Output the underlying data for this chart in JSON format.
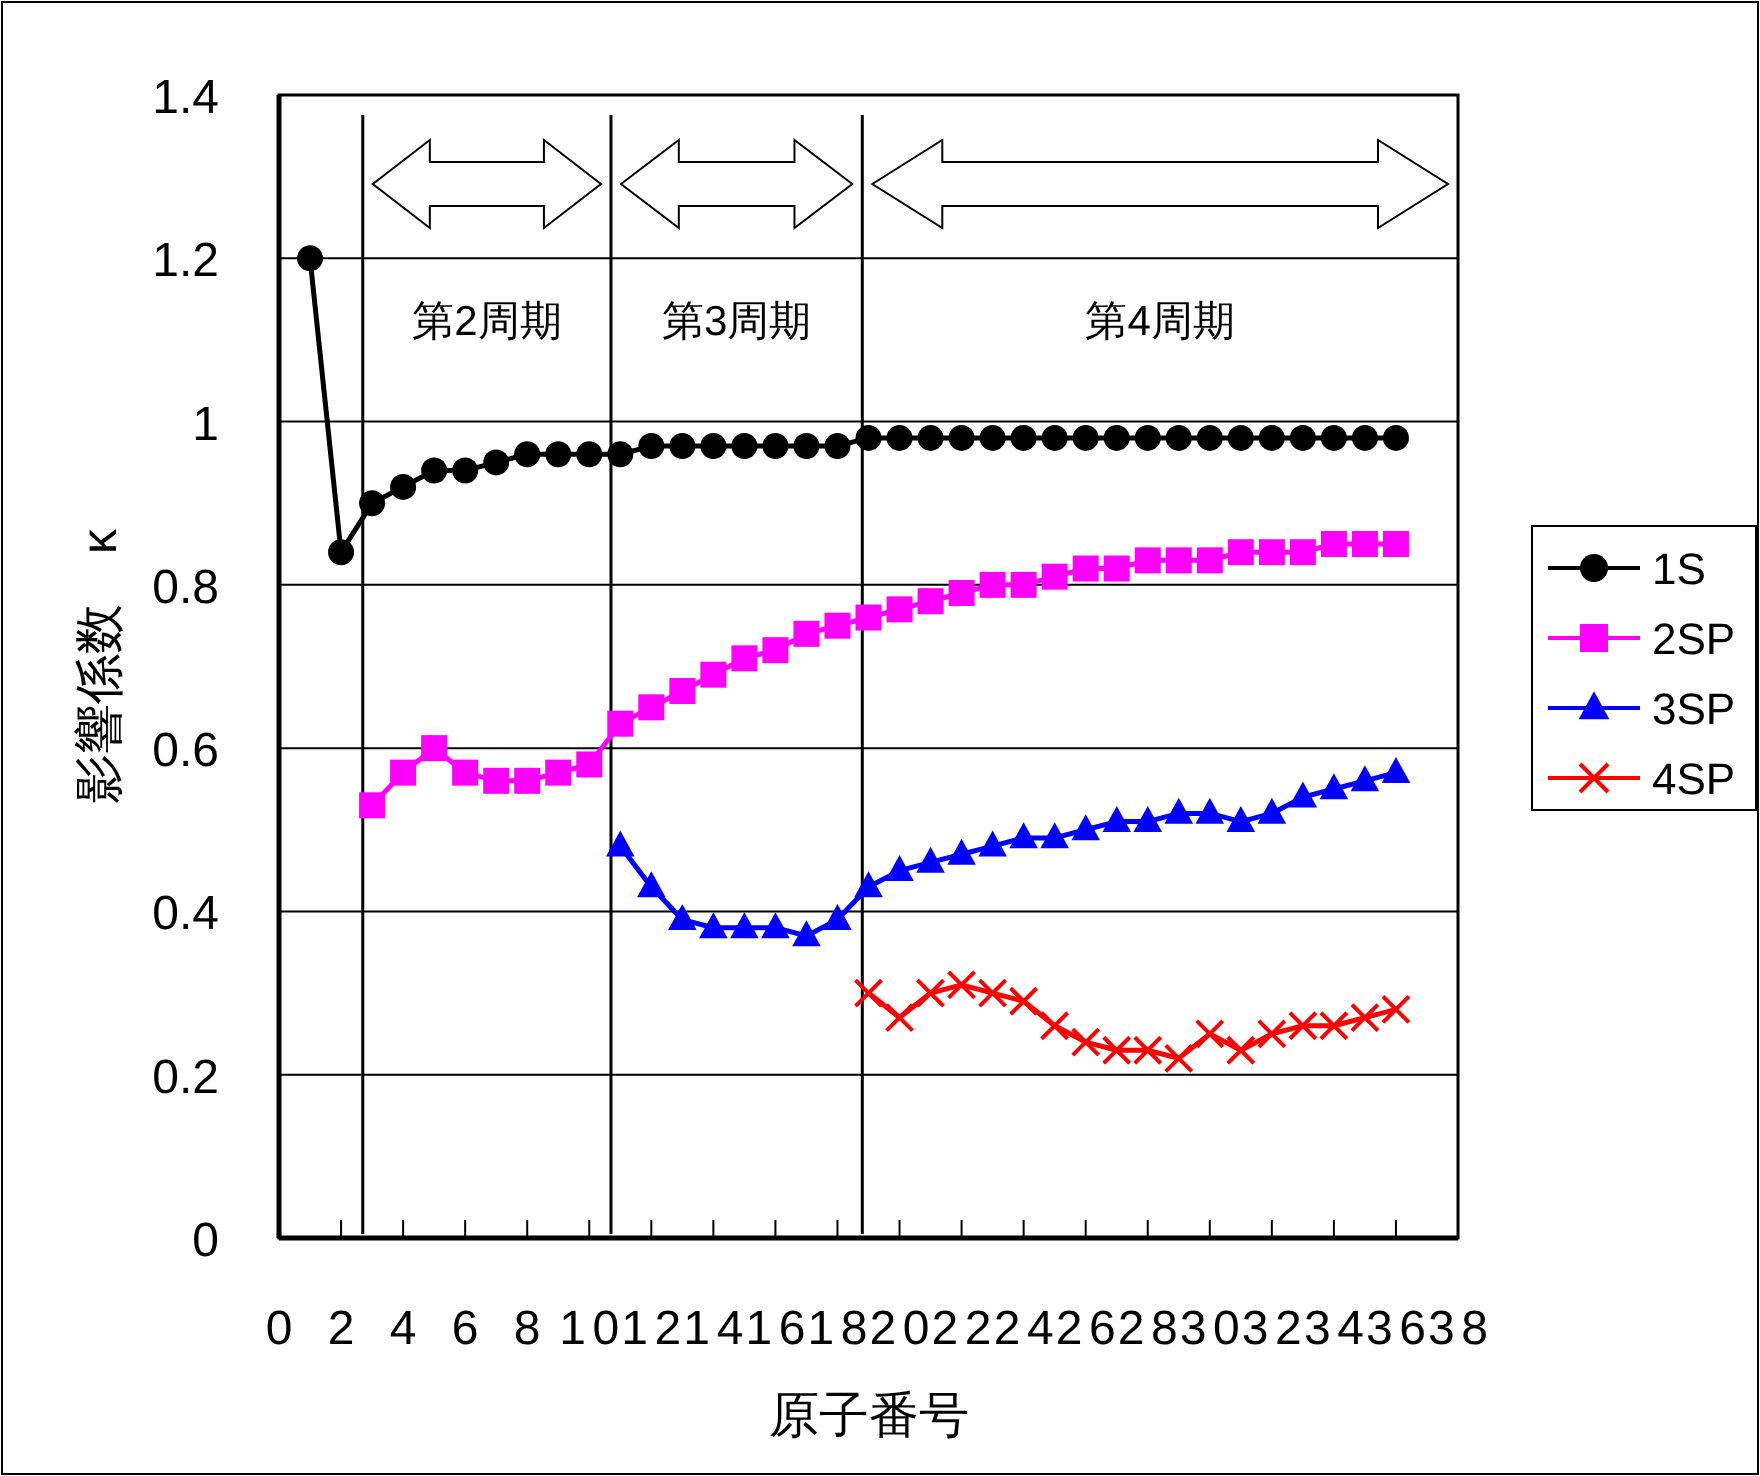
{
  "chart_data": {
    "type": "line",
    "xlabel": "原子番号",
    "ylabel": "影響係数　κ",
    "x": [
      1,
      2,
      3,
      4,
      5,
      6,
      7,
      8,
      9,
      10,
      11,
      12,
      13,
      14,
      15,
      16,
      17,
      18,
      19,
      20,
      21,
      22,
      23,
      24,
      25,
      26,
      27,
      28,
      29,
      30,
      31,
      32,
      33,
      34,
      35,
      36
    ],
    "series": [
      {
        "name": "1S",
        "color": "#000000",
        "marker": "circle",
        "values": [
          1.2,
          0.84,
          0.9,
          0.92,
          0.94,
          0.94,
          0.95,
          0.96,
          0.96,
          0.96,
          0.96,
          0.97,
          0.97,
          0.97,
          0.97,
          0.97,
          0.97,
          0.97,
          0.98,
          0.98,
          0.98,
          0.98,
          0.98,
          0.98,
          0.98,
          0.98,
          0.98,
          0.98,
          0.98,
          0.98,
          0.98,
          0.98,
          0.98,
          0.98,
          0.98,
          0.98
        ]
      },
      {
        "name": "2SP",
        "color": "#ff00ff",
        "marker": "square",
        "values": [
          null,
          null,
          0.53,
          0.57,
          0.6,
          0.57,
          0.56,
          0.56,
          0.57,
          0.58,
          0.63,
          0.65,
          0.67,
          0.69,
          0.71,
          0.72,
          0.74,
          0.75,
          0.76,
          0.77,
          0.78,
          0.79,
          0.8,
          0.8,
          0.81,
          0.82,
          0.82,
          0.83,
          0.83,
          0.83,
          0.84,
          0.84,
          0.84,
          0.85,
          0.85,
          0.85
        ]
      },
      {
        "name": "3SP",
        "color": "#0000ff",
        "marker": "triangle",
        "values": [
          null,
          null,
          null,
          null,
          null,
          null,
          null,
          null,
          null,
          null,
          0.48,
          0.43,
          0.39,
          0.38,
          0.38,
          0.38,
          0.37,
          0.39,
          0.43,
          0.45,
          0.46,
          0.47,
          0.48,
          0.49,
          0.49,
          0.5,
          0.51,
          0.51,
          0.52,
          0.52,
          0.51,
          0.52,
          0.54,
          0.55,
          0.56,
          0.57
        ]
      },
      {
        "name": "4SP",
        "color": "#ff0000",
        "marker": "cross",
        "values": [
          null,
          null,
          null,
          null,
          null,
          null,
          null,
          null,
          null,
          null,
          null,
          null,
          null,
          null,
          null,
          null,
          null,
          null,
          0.3,
          0.27,
          0.3,
          0.31,
          0.3,
          0.29,
          0.26,
          0.24,
          0.23,
          0.23,
          0.22,
          0.25,
          0.23,
          0.25,
          0.26,
          0.26,
          0.27,
          0.28
        ]
      }
    ],
    "xlim": [
      0,
      38
    ],
    "xticks": [
      0,
      2,
      4,
      6,
      8,
      10,
      12,
      14,
      16,
      18,
      20,
      22,
      24,
      26,
      28,
      30,
      32,
      34,
      36,
      38
    ],
    "ylim": [
      0,
      1.4
    ],
    "yticks": [
      0,
      0.2,
      0.4,
      0.6,
      0.8,
      1,
      1.2,
      1.4
    ],
    "grid": "y",
    "legend": "right",
    "ref_lines": [
      {
        "axis": "x",
        "value": 2.7,
        "color": "#000000"
      },
      {
        "axis": "x",
        "value": 10.7,
        "color": "#000000"
      },
      {
        "axis": "x",
        "value": 18.8,
        "color": "#000000"
      }
    ],
    "annotations": [
      "第2周期",
      "第3周期",
      "第4周期"
    ]
  }
}
